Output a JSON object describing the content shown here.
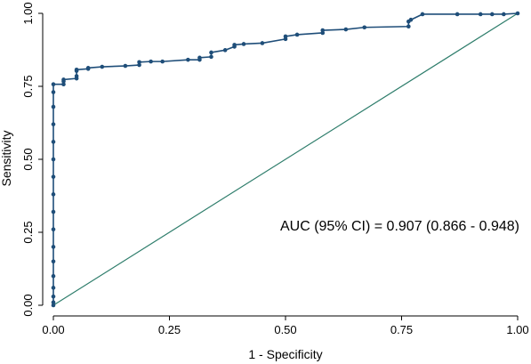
{
  "chart_data": {
    "type": "line",
    "xlabel": "1 - Specificity",
    "ylabel": "Sensitivity",
    "xlim": [
      0,
      1
    ],
    "ylim": [
      0,
      1
    ],
    "x_ticks": [
      "0.00",
      "0.25",
      "0.50",
      "0.75",
      "1.00"
    ],
    "y_ticks": [
      "0.00",
      "0.25",
      "0.50",
      "0.75",
      "1.00"
    ],
    "annotation": "AUC (95% CI) = 0.907 (0.866 - 0.948)",
    "grid": false,
    "legend": "none",
    "colors": {
      "roc": "#1f4e79",
      "reference": "#2e7d6b",
      "axis": "#000000"
    },
    "series": [
      {
        "values": [
          [
            0.0,
            0.0
          ],
          [
            0.0,
            0.01
          ],
          [
            0.0,
            0.03
          ],
          [
            0.0,
            0.06
          ],
          [
            0.0,
            0.1
          ],
          [
            0.0,
            0.15
          ],
          [
            0.0,
            0.2
          ],
          [
            0.0,
            0.26
          ],
          [
            0.0,
            0.32
          ],
          [
            0.0,
            0.38
          ],
          [
            0.0,
            0.44
          ],
          [
            0.0,
            0.5
          ],
          [
            0.0,
            0.56
          ],
          [
            0.0,
            0.62
          ],
          [
            0.0,
            0.68
          ],
          [
            0.0,
            0.73
          ],
          [
            0.0,
            0.757
          ],
          [
            0.022,
            0.757
          ],
          [
            0.022,
            0.767
          ],
          [
            0.022,
            0.773
          ],
          [
            0.05,
            0.777
          ],
          [
            0.05,
            0.785
          ],
          [
            0.05,
            0.803
          ],
          [
            0.05,
            0.807
          ],
          [
            0.075,
            0.81
          ],
          [
            0.075,
            0.813
          ],
          [
            0.105,
            0.817
          ],
          [
            0.155,
            0.82
          ],
          [
            0.185,
            0.823
          ],
          [
            0.185,
            0.833
          ],
          [
            0.21,
            0.835
          ],
          [
            0.235,
            0.835
          ],
          [
            0.29,
            0.841
          ],
          [
            0.315,
            0.841
          ],
          [
            0.315,
            0.848
          ],
          [
            0.34,
            0.851
          ],
          [
            0.34,
            0.866
          ],
          [
            0.37,
            0.874
          ],
          [
            0.39,
            0.886
          ],
          [
            0.39,
            0.892
          ],
          [
            0.41,
            0.895
          ],
          [
            0.45,
            0.898
          ],
          [
            0.5,
            0.912
          ],
          [
            0.5,
            0.921
          ],
          [
            0.525,
            0.927
          ],
          [
            0.58,
            0.933
          ],
          [
            0.58,
            0.942
          ],
          [
            0.63,
            0.945
          ],
          [
            0.67,
            0.952
          ],
          [
            0.765,
            0.955
          ],
          [
            0.765,
            0.972
          ],
          [
            0.77,
            0.978
          ],
          [
            0.795,
            0.997
          ],
          [
            0.87,
            0.997
          ],
          [
            0.92,
            0.997
          ],
          [
            0.945,
            0.997
          ],
          [
            0.97,
            0.997
          ],
          [
            1.0,
            1.0
          ]
        ]
      },
      {
        "values": [
          [
            0,
            0
          ],
          [
            1,
            1
          ]
        ]
      }
    ]
  }
}
